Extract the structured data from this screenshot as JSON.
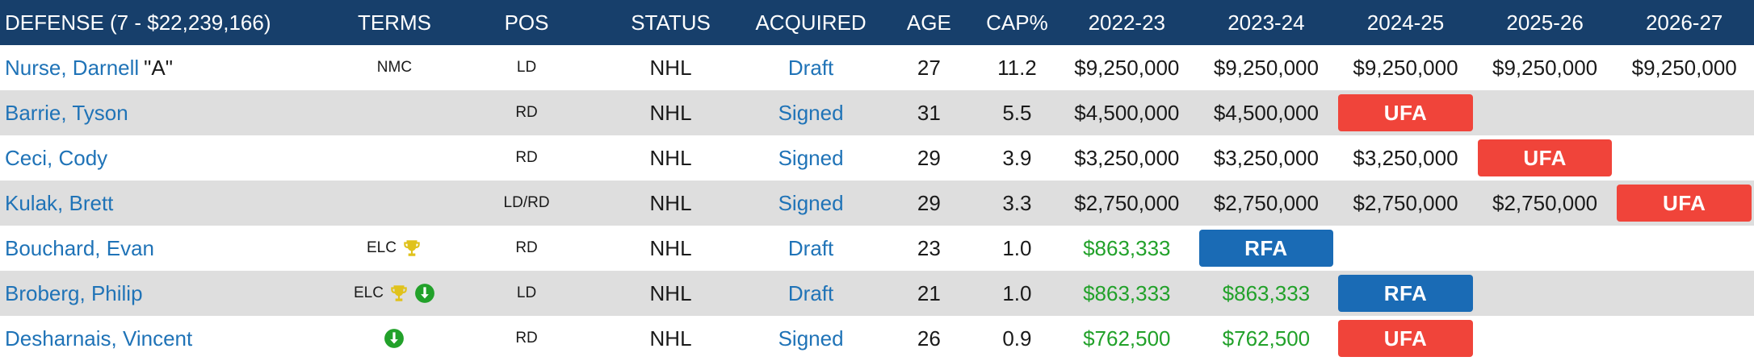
{
  "header": {
    "group": "DEFENSE (7 - $22,239,166)",
    "terms": "TERMS",
    "pos": "POS",
    "status": "STATUS",
    "acquired": "ACQUIRED",
    "age": "AGE",
    "cap": "CAP%",
    "years": [
      "2022-23",
      "2023-24",
      "2024-25",
      "2025-26",
      "2026-27"
    ]
  },
  "colors": {
    "header_bg": "#173f6b",
    "link": "#1f73b7",
    "elc_salary": "#22a12a",
    "ufa_badge": "#f0443a",
    "rfa_badge": "#1a6bb5",
    "alt_row": "#dedede"
  },
  "players": [
    {
      "name": "Nurse, Darnell",
      "suffix": "\"A\"",
      "terms": "NMC",
      "icons": [],
      "pos": "LD",
      "status": "NHL",
      "acquired": "Draft",
      "age": "27",
      "cap": "11.2",
      "years": [
        {
          "text": "$9,250,000",
          "style": "plain"
        },
        {
          "text": "$9,250,000",
          "style": "plain"
        },
        {
          "text": "$9,250,000",
          "style": "plain"
        },
        {
          "text": "$9,250,000",
          "style": "plain"
        },
        {
          "text": "$9,250,000",
          "style": "plain"
        }
      ]
    },
    {
      "name": "Barrie, Tyson",
      "suffix": "",
      "terms": "",
      "icons": [],
      "pos": "RD",
      "status": "NHL",
      "acquired": "Signed",
      "age": "31",
      "cap": "5.5",
      "years": [
        {
          "text": "$4,500,000",
          "style": "plain"
        },
        {
          "text": "$4,500,000",
          "style": "plain"
        },
        {
          "text": "UFA",
          "style": "ufa"
        },
        {
          "text": "",
          "style": "plain"
        },
        {
          "text": "",
          "style": "plain"
        }
      ]
    },
    {
      "name": "Ceci, Cody",
      "suffix": "",
      "terms": "",
      "icons": [],
      "pos": "RD",
      "status": "NHL",
      "acquired": "Signed",
      "age": "29",
      "cap": "3.9",
      "years": [
        {
          "text": "$3,250,000",
          "style": "plain"
        },
        {
          "text": "$3,250,000",
          "style": "plain"
        },
        {
          "text": "$3,250,000",
          "style": "plain"
        },
        {
          "text": "UFA",
          "style": "ufa"
        },
        {
          "text": "",
          "style": "plain"
        }
      ]
    },
    {
      "name": "Kulak, Brett",
      "suffix": "",
      "terms": "",
      "icons": [],
      "pos": "LD/RD",
      "status": "NHL",
      "acquired": "Signed",
      "age": "29",
      "cap": "3.3",
      "years": [
        {
          "text": "$2,750,000",
          "style": "plain"
        },
        {
          "text": "$2,750,000",
          "style": "plain"
        },
        {
          "text": "$2,750,000",
          "style": "plain"
        },
        {
          "text": "$2,750,000",
          "style": "plain"
        },
        {
          "text": "UFA",
          "style": "ufa"
        }
      ]
    },
    {
      "name": "Bouchard, Evan",
      "suffix": "",
      "terms": "ELC",
      "icons": [
        "trophy-icon"
      ],
      "pos": "RD",
      "status": "NHL",
      "acquired": "Draft",
      "age": "23",
      "cap": "1.0",
      "years": [
        {
          "text": "$863,333",
          "style": "green"
        },
        {
          "text": "RFA",
          "style": "rfa"
        },
        {
          "text": "",
          "style": "plain"
        },
        {
          "text": "",
          "style": "plain"
        },
        {
          "text": "",
          "style": "plain"
        }
      ]
    },
    {
      "name": "Broberg, Philip",
      "suffix": "",
      "terms": "ELC",
      "icons": [
        "trophy-icon",
        "arrow-down-circle-icon"
      ],
      "pos": "LD",
      "status": "NHL",
      "acquired": "Draft",
      "age": "21",
      "cap": "1.0",
      "years": [
        {
          "text": "$863,333",
          "style": "green"
        },
        {
          "text": "$863,333",
          "style": "green"
        },
        {
          "text": "RFA",
          "style": "rfa"
        },
        {
          "text": "",
          "style": "plain"
        },
        {
          "text": "",
          "style": "plain"
        }
      ]
    },
    {
      "name": "Desharnais, Vincent",
      "suffix": "",
      "terms": "",
      "icons": [
        "arrow-down-circle-icon"
      ],
      "pos": "RD",
      "status": "NHL",
      "acquired": "Signed",
      "age": "26",
      "cap": "0.9",
      "years": [
        {
          "text": "$762,500",
          "style": "green"
        },
        {
          "text": "$762,500",
          "style": "green"
        },
        {
          "text": "UFA",
          "style": "ufa"
        },
        {
          "text": "",
          "style": "plain"
        },
        {
          "text": "",
          "style": "plain"
        }
      ]
    }
  ]
}
